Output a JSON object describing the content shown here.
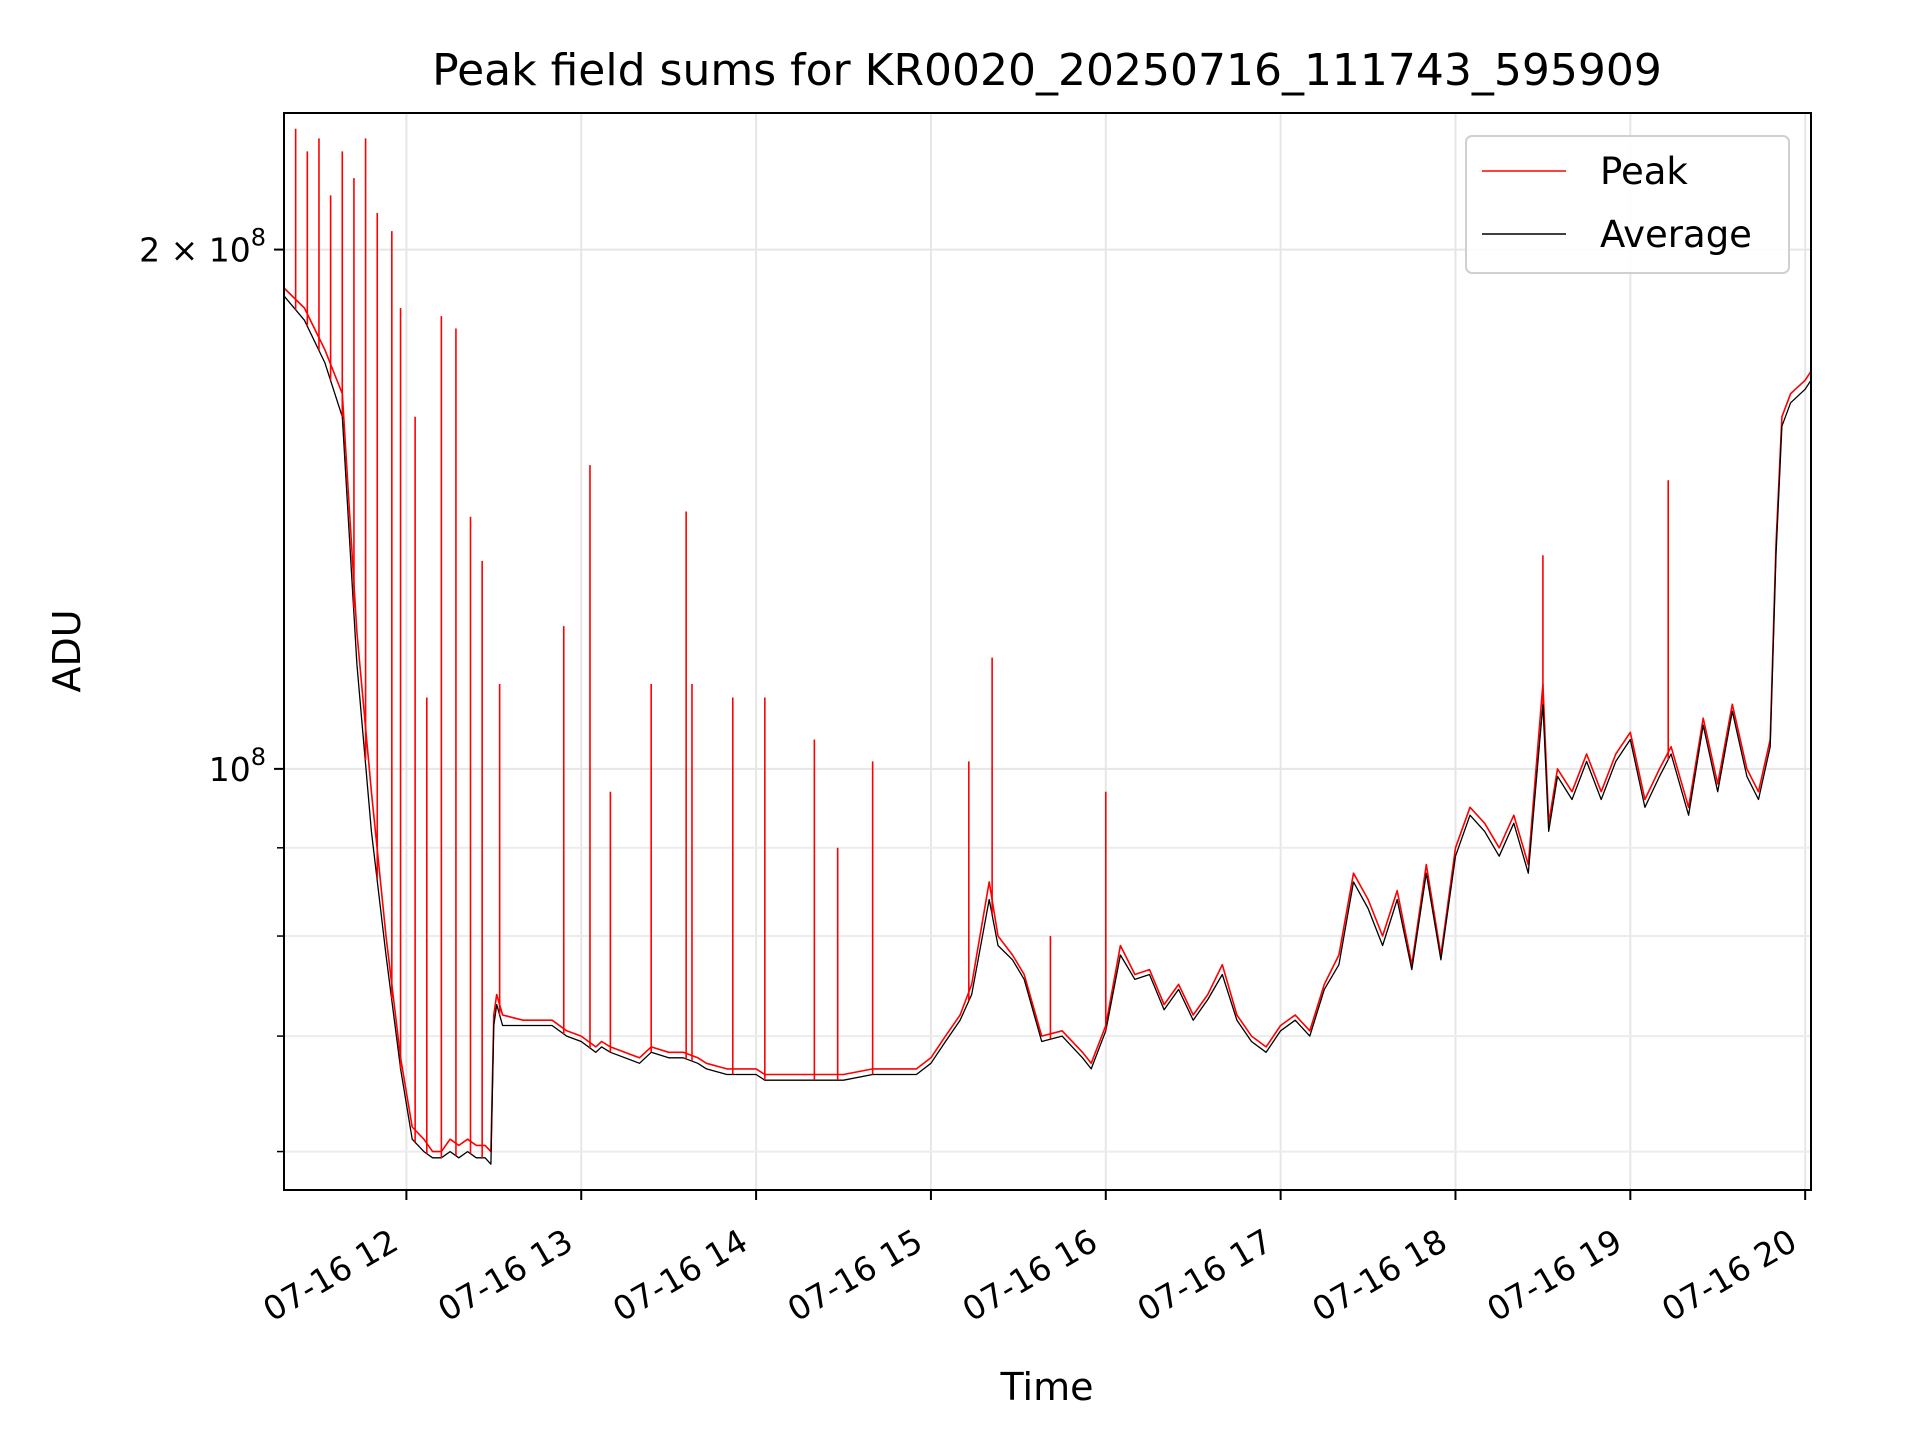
{
  "chart_data": {
    "type": "line",
    "title": "Peak field sums for KR0020_20250716_111743_595909",
    "xlabel": "Time",
    "ylabel": "ADU",
    "y_scale": "log",
    "ylim": [
      57000000,
      240000000
    ],
    "xlim": [
      "2025-07-16 11:18",
      "2025-07-16 20:02"
    ],
    "x_ticks": [
      "07-16 12",
      "07-16 13",
      "07-16 14",
      "07-16 15",
      "07-16 16",
      "07-16 17",
      "07-16 18",
      "07-16 19",
      "07-16 20"
    ],
    "y_ticks": [
      {
        "value": 100000000,
        "base": "10",
        "exp": "8",
        "coef": ""
      },
      {
        "value": 200000000,
        "base": "10",
        "exp": "8",
        "coef": "2 × "
      }
    ],
    "grid": true,
    "legend": {
      "placement": "top-right"
    },
    "colors": {
      "peak": "#ff0000",
      "average": "#000000"
    },
    "series": [
      {
        "name": "Peak",
        "color": "#ff0000",
        "x": [
          "2025-07-16 11:18",
          "2025-07-16 11:25",
          "2025-07-16 11:32",
          "2025-07-16 11:38",
          "2025-07-16 11:43",
          "2025-07-16 11:48",
          "2025-07-16 11:53",
          "2025-07-16 11:58",
          "2025-07-16 12:02",
          "2025-07-16 12:06",
          "2025-07-16 12:09",
          "2025-07-16 12:12",
          "2025-07-16 12:15",
          "2025-07-16 12:18",
          "2025-07-16 12:21",
          "2025-07-16 12:24",
          "2025-07-16 12:27",
          "2025-07-16 12:29",
          "2025-07-16 12:30",
          "2025-07-16 12:31",
          "2025-07-16 12:33",
          "2025-07-16 12:40",
          "2025-07-16 12:50",
          "2025-07-16 12:55",
          "2025-07-16 13:00",
          "2025-07-16 13:05",
          "2025-07-16 13:07",
          "2025-07-16 13:10",
          "2025-07-16 13:20",
          "2025-07-16 13:24",
          "2025-07-16 13:30",
          "2025-07-16 13:35",
          "2025-07-16 13:40",
          "2025-07-16 13:43",
          "2025-07-16 13:50",
          "2025-07-16 14:00",
          "2025-07-16 14:03",
          "2025-07-16 14:10",
          "2025-07-16 14:20",
          "2025-07-16 14:30",
          "2025-07-16 14:40",
          "2025-07-16 14:45",
          "2025-07-16 14:55",
          "2025-07-16 15:00",
          "2025-07-16 15:05",
          "2025-07-16 15:10",
          "2025-07-16 15:14",
          "2025-07-16 15:20",
          "2025-07-16 15:23",
          "2025-07-16 15:28",
          "2025-07-16 15:32",
          "2025-07-16 15:38",
          "2025-07-16 15:45",
          "2025-07-16 15:52",
          "2025-07-16 15:55",
          "2025-07-16 16:00",
          "2025-07-16 16:05",
          "2025-07-16 16:10",
          "2025-07-16 16:15",
          "2025-07-16 16:20",
          "2025-07-16 16:25",
          "2025-07-16 16:30",
          "2025-07-16 16:35",
          "2025-07-16 16:40",
          "2025-07-16 16:45",
          "2025-07-16 16:50",
          "2025-07-16 16:55",
          "2025-07-16 17:00",
          "2025-07-16 17:05",
          "2025-07-16 17:10",
          "2025-07-16 17:15",
          "2025-07-16 17:20",
          "2025-07-16 17:25",
          "2025-07-16 17:30",
          "2025-07-16 17:35",
          "2025-07-16 17:40",
          "2025-07-16 17:45",
          "2025-07-16 17:50",
          "2025-07-16 17:55",
          "2025-07-16 18:00",
          "2025-07-16 18:05",
          "2025-07-16 18:10",
          "2025-07-16 18:15",
          "2025-07-16 18:20",
          "2025-07-16 18:25",
          "2025-07-16 18:30",
          "2025-07-16 18:32",
          "2025-07-16 18:35",
          "2025-07-16 18:40",
          "2025-07-16 18:45",
          "2025-07-16 18:50",
          "2025-07-16 18:55",
          "2025-07-16 19:00",
          "2025-07-16 19:05",
          "2025-07-16 19:10",
          "2025-07-16 19:14",
          "2025-07-16 19:20",
          "2025-07-16 19:25",
          "2025-07-16 19:30",
          "2025-07-16 19:35",
          "2025-07-16 19:40",
          "2025-07-16 19:44",
          "2025-07-16 19:48",
          "2025-07-16 19:50",
          "2025-07-16 19:52",
          "2025-07-16 19:55",
          "2025-07-16 20:00",
          "2025-07-16 20:02"
        ],
        "y": [
          190000000,
          185000000,
          175000000,
          165000000,
          120000000,
          97000000,
          80000000,
          68000000,
          62000000,
          61000000,
          60000000,
          60000000,
          61000000,
          60500000,
          61000000,
          60500000,
          60500000,
          60000000,
          72000000,
          74000000,
          72000000,
          71500000,
          71500000,
          70500000,
          70000000,
          69000000,
          69500000,
          69000000,
          68000000,
          69000000,
          68500000,
          68500000,
          68000000,
          67500000,
          67000000,
          67000000,
          66500000,
          66500000,
          66500000,
          66500000,
          67000000,
          67000000,
          67000000,
          68000000,
          70000000,
          72000000,
          75000000,
          86000000,
          80000000,
          78000000,
          76000000,
          70000000,
          70500000,
          68500000,
          67500000,
          71000000,
          79000000,
          76000000,
          76500000,
          73000000,
          75000000,
          72000000,
          74000000,
          77000000,
          72000000,
          70000000,
          69000000,
          71000000,
          72000000,
          70500000,
          75000000,
          78000000,
          87000000,
          84000000,
          80000000,
          85000000,
          77000000,
          88000000,
          78000000,
          90000000,
          95000000,
          93000000,
          90000000,
          94000000,
          88000000,
          112000000,
          93000000,
          100000000,
          97000000,
          102000000,
          97000000,
          102000000,
          105000000,
          96000000,
          100000000,
          103000000,
          95000000,
          107000000,
          98000000,
          109000000,
          100000000,
          97000000,
          104000000,
          135000000,
          160000000,
          165000000,
          168000000,
          170000000
        ]
      },
      {
        "name": "Average",
        "color": "#000000",
        "x": [
          "2025-07-16 11:18",
          "2025-07-16 11:25",
          "2025-07-16 11:32",
          "2025-07-16 11:38",
          "2025-07-16 11:43",
          "2025-07-16 11:48",
          "2025-07-16 11:53",
          "2025-07-16 11:58",
          "2025-07-16 12:02",
          "2025-07-16 12:06",
          "2025-07-16 12:09",
          "2025-07-16 12:12",
          "2025-07-16 12:15",
          "2025-07-16 12:18",
          "2025-07-16 12:21",
          "2025-07-16 12:24",
          "2025-07-16 12:27",
          "2025-07-16 12:29",
          "2025-07-16 12:30",
          "2025-07-16 12:31",
          "2025-07-16 12:33",
          "2025-07-16 12:40",
          "2025-07-16 12:50",
          "2025-07-16 12:55",
          "2025-07-16 13:00",
          "2025-07-16 13:05",
          "2025-07-16 13:07",
          "2025-07-16 13:10",
          "2025-07-16 13:20",
          "2025-07-16 13:24",
          "2025-07-16 13:30",
          "2025-07-16 13:35",
          "2025-07-16 13:40",
          "2025-07-16 13:43",
          "2025-07-16 13:50",
          "2025-07-16 14:00",
          "2025-07-16 14:03",
          "2025-07-16 14:10",
          "2025-07-16 14:20",
          "2025-07-16 14:30",
          "2025-07-16 14:40",
          "2025-07-16 14:45",
          "2025-07-16 14:55",
          "2025-07-16 15:00",
          "2025-07-16 15:05",
          "2025-07-16 15:10",
          "2025-07-16 15:14",
          "2025-07-16 15:20",
          "2025-07-16 15:23",
          "2025-07-16 15:28",
          "2025-07-16 15:32",
          "2025-07-16 15:38",
          "2025-07-16 15:45",
          "2025-07-16 15:52",
          "2025-07-16 15:55",
          "2025-07-16 16:00",
          "2025-07-16 16:05",
          "2025-07-16 16:10",
          "2025-07-16 16:15",
          "2025-07-16 16:20",
          "2025-07-16 16:25",
          "2025-07-16 16:30",
          "2025-07-16 16:35",
          "2025-07-16 16:40",
          "2025-07-16 16:45",
          "2025-07-16 16:50",
          "2025-07-16 16:55",
          "2025-07-16 17:00",
          "2025-07-16 17:05",
          "2025-07-16 17:10",
          "2025-07-16 17:15",
          "2025-07-16 17:20",
          "2025-07-16 17:25",
          "2025-07-16 17:30",
          "2025-07-16 17:35",
          "2025-07-16 17:40",
          "2025-07-16 17:45",
          "2025-07-16 17:50",
          "2025-07-16 17:55",
          "2025-07-16 18:00",
          "2025-07-16 18:05",
          "2025-07-16 18:10",
          "2025-07-16 18:15",
          "2025-07-16 18:20",
          "2025-07-16 18:25",
          "2025-07-16 18:30",
          "2025-07-16 18:32",
          "2025-07-16 18:35",
          "2025-07-16 18:40",
          "2025-07-16 18:45",
          "2025-07-16 18:50",
          "2025-07-16 18:55",
          "2025-07-16 19:00",
          "2025-07-16 19:05",
          "2025-07-16 19:10",
          "2025-07-16 19:14",
          "2025-07-16 19:20",
          "2025-07-16 19:25",
          "2025-07-16 19:30",
          "2025-07-16 19:35",
          "2025-07-16 19:40",
          "2025-07-16 19:44",
          "2025-07-16 19:48",
          "2025-07-16 19:50",
          "2025-07-16 19:52",
          "2025-07-16 19:55",
          "2025-07-16 20:00",
          "2025-07-16 20:02"
        ],
        "y": [
          188000000,
          182000000,
          172000000,
          160000000,
          115000000,
          92000000,
          78000000,
          67000000,
          61000000,
          60000000,
          59500000,
          59500000,
          60000000,
          59500000,
          60000000,
          59500000,
          59500000,
          59000000,
          71000000,
          73000000,
          71000000,
          71000000,
          71000000,
          70000000,
          69500000,
          68500000,
          69000000,
          68500000,
          67500000,
          68500000,
          68000000,
          68000000,
          67500000,
          67000000,
          66500000,
          66500000,
          66000000,
          66000000,
          66000000,
          66000000,
          66500000,
          66500000,
          66500000,
          67500000,
          69500000,
          71500000,
          74000000,
          84000000,
          79000000,
          77500000,
          75500000,
          69500000,
          70000000,
          68000000,
          67000000,
          70500000,
          78000000,
          75500000,
          76000000,
          72500000,
          74500000,
          71500000,
          73500000,
          76000000,
          71500000,
          69500000,
          68500000,
          70500000,
          71500000,
          70000000,
          74500000,
          77000000,
          86000000,
          83000000,
          79000000,
          84000000,
          76500000,
          87000000,
          77500000,
          89000000,
          94000000,
          92000000,
          89000000,
          93000000,
          87000000,
          109000000,
          92000000,
          99000000,
          96000000,
          101000000,
          96000000,
          101000000,
          104000000,
          95000000,
          99000000,
          102000000,
          94000000,
          106000000,
          97000000,
          108000000,
          99000000,
          96000000,
          103000000,
          133000000,
          158000000,
          163000000,
          166000000,
          168000000
        ]
      }
    ],
    "spikes": [
      {
        "x": "2025-07-16 11:22",
        "y": 235000000
      },
      {
        "x": "2025-07-16 11:26",
        "y": 228000000
      },
      {
        "x": "2025-07-16 11:30",
        "y": 232000000
      },
      {
        "x": "2025-07-16 11:34",
        "y": 215000000
      },
      {
        "x": "2025-07-16 11:38",
        "y": 228000000
      },
      {
        "x": "2025-07-16 11:42",
        "y": 220000000
      },
      {
        "x": "2025-07-16 11:46",
        "y": 232000000
      },
      {
        "x": "2025-07-16 11:50",
        "y": 210000000
      },
      {
        "x": "2025-07-16 11:55",
        "y": 205000000
      },
      {
        "x": "2025-07-16 11:58",
        "y": 185000000
      },
      {
        "x": "2025-07-16 12:03",
        "y": 160000000
      },
      {
        "x": "2025-07-16 12:07",
        "y": 110000000
      },
      {
        "x": "2025-07-16 12:12",
        "y": 183000000
      },
      {
        "x": "2025-07-16 12:17",
        "y": 180000000
      },
      {
        "x": "2025-07-16 12:22",
        "y": 140000000
      },
      {
        "x": "2025-07-16 12:26",
        "y": 132000000
      },
      {
        "x": "2025-07-16 12:32",
        "y": 112000000
      },
      {
        "x": "2025-07-16 12:54",
        "y": 121000000
      },
      {
        "x": "2025-07-16 13:03",
        "y": 150000000
      },
      {
        "x": "2025-07-16 13:10",
        "y": 97000000
      },
      {
        "x": "2025-07-16 13:24",
        "y": 112000000
      },
      {
        "x": "2025-07-16 13:36",
        "y": 141000000
      },
      {
        "x": "2025-07-16 13:38",
        "y": 112000000
      },
      {
        "x": "2025-07-16 13:52",
        "y": 110000000
      },
      {
        "x": "2025-07-16 14:03",
        "y": 110000000
      },
      {
        "x": "2025-07-16 14:20",
        "y": 104000000
      },
      {
        "x": "2025-07-16 14:28",
        "y": 90000000
      },
      {
        "x": "2025-07-16 14:40",
        "y": 101000000
      },
      {
        "x": "2025-07-16 15:13",
        "y": 101000000
      },
      {
        "x": "2025-07-16 15:21",
        "y": 116000000
      },
      {
        "x": "2025-07-16 15:41",
        "y": 80000000
      },
      {
        "x": "2025-07-16 16:00",
        "y": 97000000
      },
      {
        "x": "2025-07-16 18:30",
        "y": 133000000
      },
      {
        "x": "2025-07-16 19:13",
        "y": 147000000
      }
    ]
  },
  "legend": {
    "entries": [
      {
        "label": "Peak",
        "color": "#ff0000"
      },
      {
        "label": "Average",
        "color": "#000000"
      }
    ]
  }
}
